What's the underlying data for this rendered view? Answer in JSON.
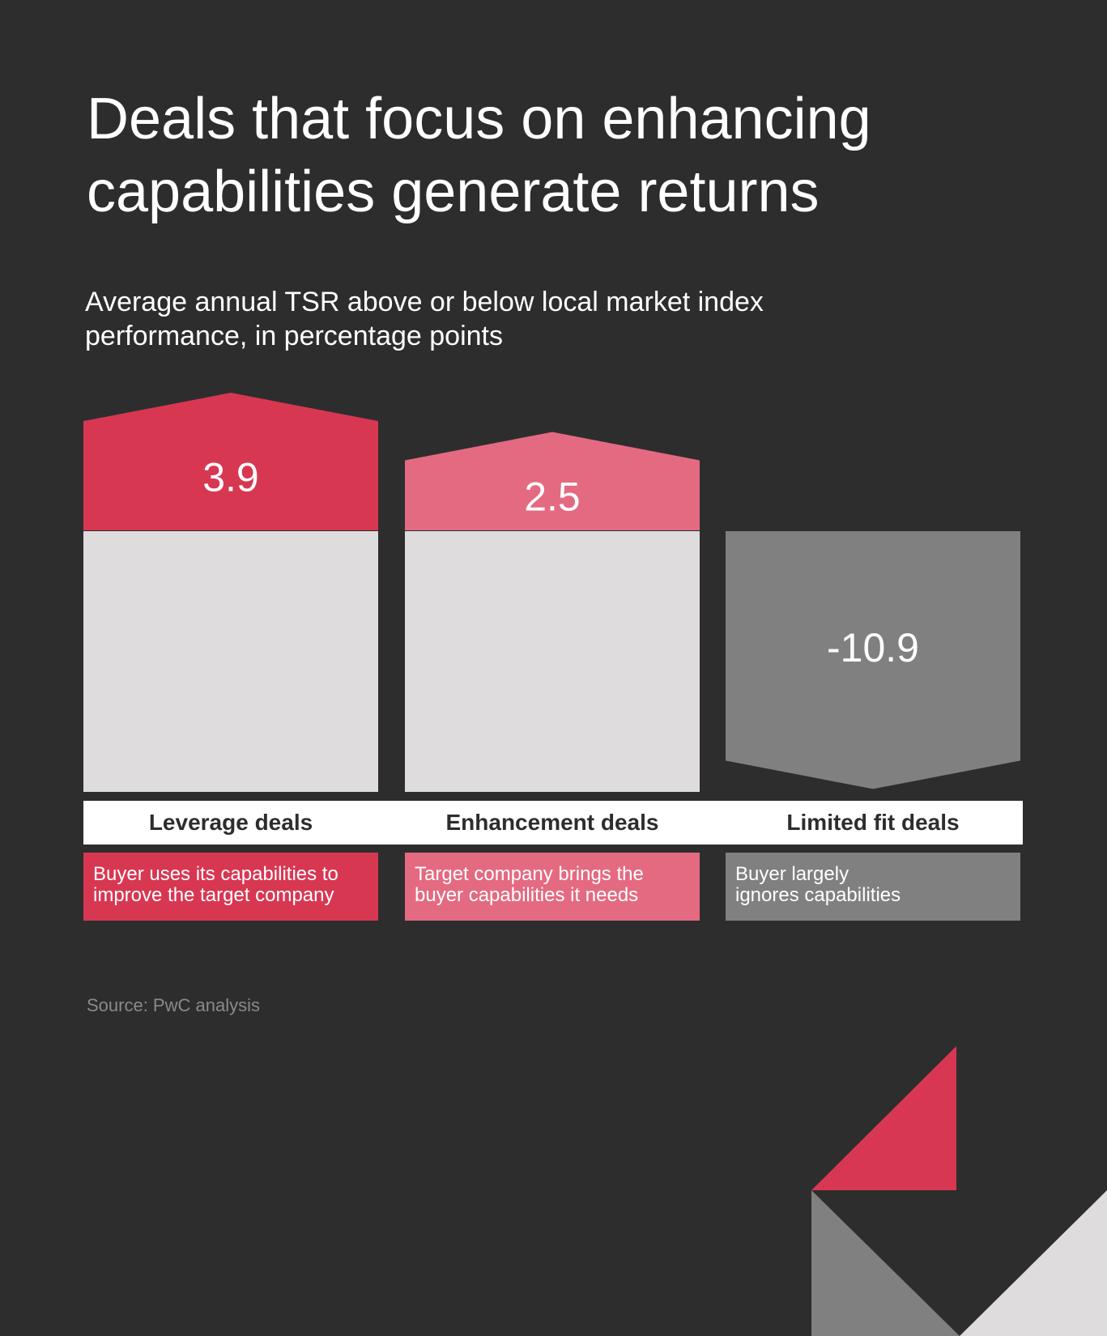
{
  "title_line1": "Deals that focus on enhancing",
  "title_line2": "capabilities generate returns",
  "subtitle_line1": "Average annual TSR above or below local market index",
  "subtitle_line2": "performance, in percentage points",
  "chart_data": {
    "type": "bar",
    "categories": [
      "Leverage deals",
      "Enhancement deals",
      "Limited fit deals"
    ],
    "values": [
      3.9,
      2.5,
      -10.9
    ],
    "value_labels": [
      "3.9",
      "2.5",
      "-10.9"
    ],
    "colors": [
      "#d83752",
      "#e46a81",
      "#808080"
    ],
    "descriptions": [
      [
        "Buyer uses its capabilities to",
        "improve the target company"
      ],
      [
        "Target company brings the",
        "buyer capabilities it needs"
      ],
      [
        "Buyer largely",
        "ignores capabilities"
      ]
    ],
    "title": "Deals that focus on enhancing capabilities generate returns",
    "ylabel": "Average annual TSR above or below local market index performance, in percentage points"
  },
  "source": "Source: PwC analysis",
  "colors": {
    "background": "#2d2d2e",
    "block": "#dedcdd",
    "red": "#d83752",
    "pink": "#e46a81",
    "gray": "#808080"
  }
}
